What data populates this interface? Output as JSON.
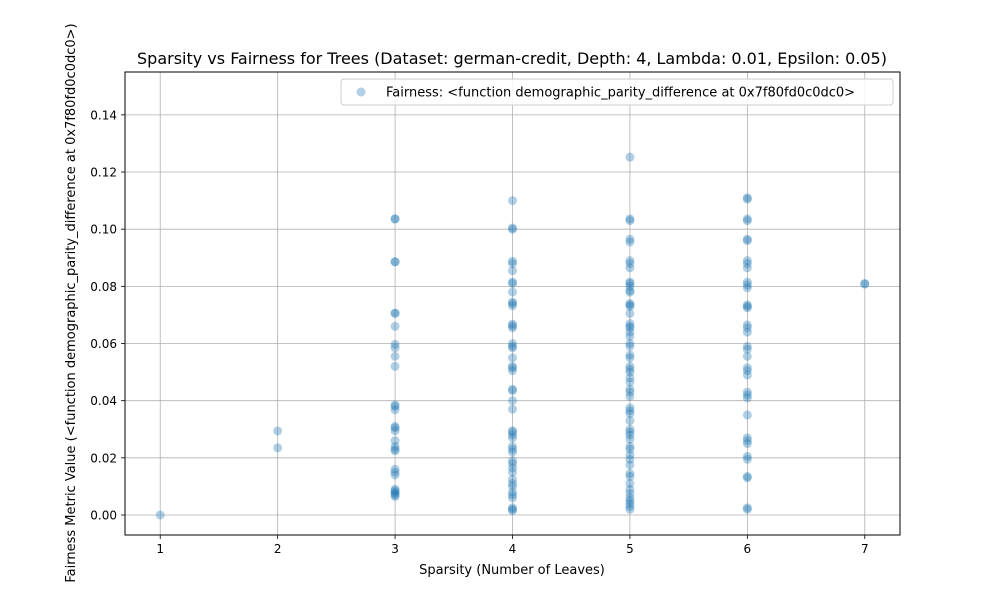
{
  "chart_data": {
    "type": "scatter",
    "title": "Sparsity vs Fairness for Trees (Dataset: german-credit, Depth: 4, Lambda: 0.01, Epsilon: 0.05)",
    "xlabel": "Sparsity (Number of Leaves)",
    "ylabel": "Fairness Metric Value (<function demographic_parity_difference at 0x7f80fd0c0dc0>)",
    "xlim": [
      0.7,
      7.3
    ],
    "ylim": [
      -0.007,
      0.155
    ],
    "xticks": [
      1,
      2,
      3,
      4,
      5,
      6,
      7
    ],
    "yticks": [
      0.0,
      0.02,
      0.04,
      0.06,
      0.08,
      0.1,
      0.12,
      0.14
    ],
    "ytick_labels": [
      "0.00",
      "0.02",
      "0.04",
      "0.06",
      "0.08",
      "0.10",
      "0.12",
      "0.14"
    ],
    "grid": true,
    "legend_position": "top-right",
    "color": "#1f77b4",
    "series": [
      {
        "name": "Fairness: <function demographic_parity_difference at 0x7f80fd0c0dc0>",
        "points": [
          [
            1,
            0.0
          ],
          [
            2,
            0.0294
          ],
          [
            2,
            0.0235
          ],
          [
            3,
            0.1036
          ],
          [
            3,
            0.1036
          ],
          [
            3,
            0.0886
          ],
          [
            3,
            0.0886
          ],
          [
            3,
            0.0706
          ],
          [
            3,
            0.0706
          ],
          [
            3,
            0.066
          ],
          [
            3,
            0.0597
          ],
          [
            3,
            0.0585
          ],
          [
            3,
            0.0555
          ],
          [
            3,
            0.052
          ],
          [
            3,
            0.0385
          ],
          [
            3,
            0.038
          ],
          [
            3,
            0.0368
          ],
          [
            3,
            0.031
          ],
          [
            3,
            0.0305
          ],
          [
            3,
            0.0295
          ],
          [
            3,
            0.026
          ],
          [
            3,
            0.024
          ],
          [
            3,
            0.023
          ],
          [
            3,
            0.0225
          ],
          [
            3,
            0.016
          ],
          [
            3,
            0.015
          ],
          [
            3,
            0.014
          ],
          [
            3,
            0.009
          ],
          [
            3,
            0.0085
          ],
          [
            3,
            0.008
          ],
          [
            3,
            0.0075
          ],
          [
            3,
            0.007
          ],
          [
            3,
            0.0065
          ],
          [
            4,
            0.11
          ],
          [
            4,
            0.1004
          ],
          [
            4,
            0.1
          ],
          [
            4,
            0.0888
          ],
          [
            4,
            0.088
          ],
          [
            4,
            0.0855
          ],
          [
            4,
            0.0815
          ],
          [
            4,
            0.081
          ],
          [
            4,
            0.078
          ],
          [
            4,
            0.0745
          ],
          [
            4,
            0.074
          ],
          [
            4,
            0.0732
          ],
          [
            4,
            0.0668
          ],
          [
            4,
            0.0662
          ],
          [
            4,
            0.0655
          ],
          [
            4,
            0.06
          ],
          [
            4,
            0.059
          ],
          [
            4,
            0.0585
          ],
          [
            4,
            0.055
          ],
          [
            4,
            0.052
          ],
          [
            4,
            0.0515
          ],
          [
            4,
            0.0505
          ],
          [
            4,
            0.044
          ],
          [
            4,
            0.0435
          ],
          [
            4,
            0.04
          ],
          [
            4,
            0.037
          ],
          [
            4,
            0.0295
          ],
          [
            4,
            0.029
          ],
          [
            4,
            0.028
          ],
          [
            4,
            0.027
          ],
          [
            4,
            0.024
          ],
          [
            4,
            0.023
          ],
          [
            4,
            0.022
          ],
          [
            4,
            0.019
          ],
          [
            4,
            0.018
          ],
          [
            4,
            0.0165
          ],
          [
            4,
            0.015
          ],
          [
            4,
            0.0125
          ],
          [
            4,
            0.011
          ],
          [
            4,
            0.01
          ],
          [
            4,
            0.008
          ],
          [
            4,
            0.007
          ],
          [
            4,
            0.006
          ],
          [
            4,
            0.0025
          ],
          [
            4,
            0.002
          ],
          [
            4,
            0.0015
          ],
          [
            5,
            0.1252
          ],
          [
            5,
            0.1036
          ],
          [
            5,
            0.103
          ],
          [
            5,
            0.0965
          ],
          [
            5,
            0.0955
          ],
          [
            5,
            0.089
          ],
          [
            5,
            0.088
          ],
          [
            5,
            0.0865
          ],
          [
            5,
            0.0815
          ],
          [
            5,
            0.081
          ],
          [
            5,
            0.08
          ],
          [
            5,
            0.0785
          ],
          [
            5,
            0.078
          ],
          [
            5,
            0.074
          ],
          [
            5,
            0.0735
          ],
          [
            5,
            0.073
          ],
          [
            5,
            0.0705
          ],
          [
            5,
            0.067
          ],
          [
            5,
            0.066
          ],
          [
            5,
            0.0655
          ],
          [
            5,
            0.064
          ],
          [
            5,
            0.0625
          ],
          [
            5,
            0.06
          ],
          [
            5,
            0.059
          ],
          [
            5,
            0.056
          ],
          [
            5,
            0.055
          ],
          [
            5,
            0.052
          ],
          [
            5,
            0.051
          ],
          [
            5,
            0.05
          ],
          [
            5,
            0.048
          ],
          [
            5,
            0.0465
          ],
          [
            5,
            0.044
          ],
          [
            5,
            0.043
          ],
          [
            5,
            0.0415
          ],
          [
            5,
            0.0375
          ],
          [
            5,
            0.0365
          ],
          [
            5,
            0.0355
          ],
          [
            5,
            0.033
          ],
          [
            5,
            0.03
          ],
          [
            5,
            0.029
          ],
          [
            5,
            0.028
          ],
          [
            5,
            0.0265
          ],
          [
            5,
            0.024
          ],
          [
            5,
            0.023
          ],
          [
            5,
            0.021
          ],
          [
            5,
            0.0195
          ],
          [
            5,
            0.0175
          ],
          [
            5,
            0.0145
          ],
          [
            5,
            0.0135
          ],
          [
            5,
            0.011
          ],
          [
            5,
            0.009
          ],
          [
            5,
            0.0075
          ],
          [
            5,
            0.006
          ],
          [
            5,
            0.005
          ],
          [
            5,
            0.004
          ],
          [
            5,
            0.003
          ],
          [
            5,
            0.002
          ],
          [
            6,
            0.111
          ],
          [
            6,
            0.1105
          ],
          [
            6,
            0.1036
          ],
          [
            6,
            0.103
          ],
          [
            6,
            0.0965
          ],
          [
            6,
            0.096
          ],
          [
            6,
            0.089
          ],
          [
            6,
            0.088
          ],
          [
            6,
            0.0865
          ],
          [
            6,
            0.0815
          ],
          [
            6,
            0.0805
          ],
          [
            6,
            0.0795
          ],
          [
            6,
            0.0735
          ],
          [
            6,
            0.073
          ],
          [
            6,
            0.0725
          ],
          [
            6,
            0.0665
          ],
          [
            6,
            0.0655
          ],
          [
            6,
            0.064
          ],
          [
            6,
            0.059
          ],
          [
            6,
            0.058
          ],
          [
            6,
            0.0555
          ],
          [
            6,
            0.0515
          ],
          [
            6,
            0.0505
          ],
          [
            6,
            0.049
          ],
          [
            6,
            0.043
          ],
          [
            6,
            0.042
          ],
          [
            6,
            0.041
          ],
          [
            6,
            0.035
          ],
          [
            6,
            0.027
          ],
          [
            6,
            0.026
          ],
          [
            6,
            0.025
          ],
          [
            6,
            0.0205
          ],
          [
            6,
            0.0195
          ],
          [
            6,
            0.0135
          ],
          [
            6,
            0.013
          ],
          [
            6,
            0.0025
          ],
          [
            6,
            0.002
          ],
          [
            7,
            0.081
          ],
          [
            7,
            0.0808
          ]
        ]
      }
    ]
  }
}
